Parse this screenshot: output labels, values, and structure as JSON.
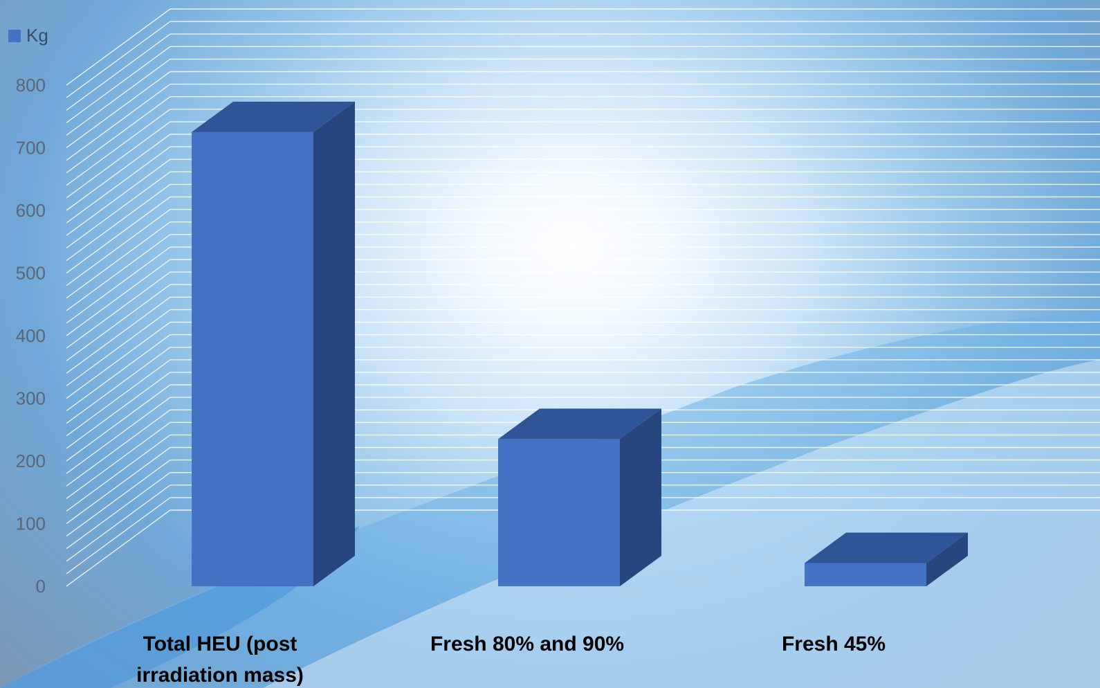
{
  "chart_data": {
    "type": "bar",
    "categories": [
      [
        "Total HEU (post",
        "irradiation mass)"
      ],
      [
        "Fresh 80% and 90%"
      ],
      [
        "Fresh 45%"
      ]
    ],
    "series": [
      {
        "name": "Kg",
        "values": [
          725,
          235,
          37
        ]
      }
    ],
    "yticks": [
      0,
      100,
      200,
      300,
      400,
      500,
      600,
      700,
      800
    ],
    "ylim": [
      0,
      800
    ],
    "grid": true,
    "legend": "top-left",
    "colors": {
      "front": "#4472c4",
      "top": "#2f5597",
      "side": "#28467e"
    }
  }
}
